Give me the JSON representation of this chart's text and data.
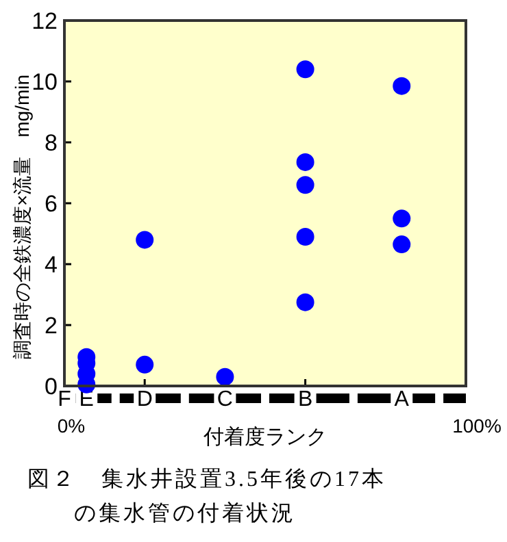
{
  "chart_data": {
    "type": "scatter",
    "title": "図２　集水井設置3.5年後の17本の集水管の付着状況",
    "xlabel": "付着度ランク",
    "ylabel": "調査時の全鉄濃度×流量　mg/min",
    "categories": [
      "F",
      "E",
      "D",
      "C",
      "B",
      "A"
    ],
    "series": [
      {
        "color": "#0000ff",
        "x": [
          "E",
          "E",
          "E",
          "E",
          "D",
          "D",
          "C",
          "B",
          "B",
          "B",
          "B",
          "B",
          "A",
          "A",
          "A"
        ],
        "values": [
          0.95,
          0.75,
          0.4,
          0.05,
          4.8,
          0.7,
          0.3,
          10.4,
          7.35,
          6.6,
          4.9,
          2.75,
          9.85,
          5.5,
          4.65
        ]
      }
    ],
    "ylim": [
      0,
      12
    ],
    "yticks": [
      0,
      2,
      4,
      6,
      8,
      10,
      12
    ],
    "annotations": [
      "0%",
      "100%"
    ],
    "marker": "circle",
    "grid": false
  }
}
